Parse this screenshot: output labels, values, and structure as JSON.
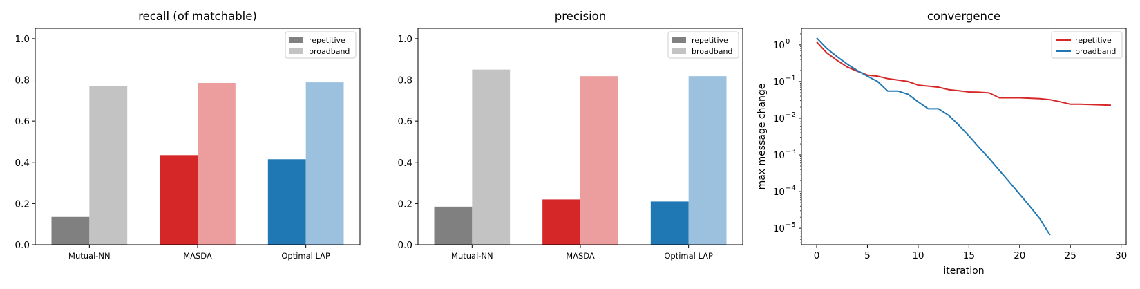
{
  "charts": [
    {
      "type": "bar",
      "title": "recall (of matchable)",
      "categories": [
        "Mutual-NN",
        "MASDA",
        "Optimal LAP"
      ],
      "ylim": [
        0,
        1.05
      ],
      "yticks": [
        "0.0",
        "0.2",
        "0.4",
        "0.6",
        "0.8",
        "1.0"
      ],
      "legend": {
        "placement": "top-right",
        "entries": [
          "repetitive",
          "broadband"
        ],
        "colors": [
          "#808080",
          "#c3c3c3"
        ]
      },
      "series": [
        {
          "name": "repetitive",
          "values": [
            0.135,
            0.435,
            0.415
          ],
          "colors": [
            "#808080",
            "#d62728",
            "#1f77b4"
          ]
        },
        {
          "name": "broadband",
          "values": [
            0.77,
            0.785,
            0.788
          ],
          "colors": [
            "#c3c3c3",
            "#ec9e9e",
            "#9bc1df"
          ]
        }
      ]
    },
    {
      "type": "bar",
      "title": "precision",
      "categories": [
        "Mutual-NN",
        "MASDA",
        "Optimal LAP"
      ],
      "ylim": [
        0,
        1.05
      ],
      "yticks": [
        "0.0",
        "0.2",
        "0.4",
        "0.6",
        "0.8",
        "1.0"
      ],
      "legend": {
        "placement": "top-right",
        "entries": [
          "repetitive",
          "broadband"
        ],
        "colors": [
          "#808080",
          "#c3c3c3"
        ]
      },
      "series": [
        {
          "name": "repetitive",
          "values": [
            0.185,
            0.22,
            0.21
          ],
          "colors": [
            "#808080",
            "#d62728",
            "#1f77b4"
          ]
        },
        {
          "name": "broadband",
          "values": [
            0.85,
            0.818,
            0.818
          ],
          "colors": [
            "#c3c3c3",
            "#ec9e9e",
            "#9bc1df"
          ]
        }
      ]
    },
    {
      "type": "line",
      "title": "convergence",
      "xlabel": "iteration",
      "ylabel": "max message change",
      "yscale": "log",
      "xlim": [
        -1.5,
        30.5
      ],
      "ylim_log10": [
        -5.45,
        0.45
      ],
      "xticks": [
        "0",
        "5",
        "10",
        "15",
        "20",
        "25",
        "30"
      ],
      "yticks": [
        {
          "base": "10",
          "exp": "0"
        },
        {
          "base": "10",
          "exp": "−1"
        },
        {
          "base": "10",
          "exp": "−2"
        },
        {
          "base": "10",
          "exp": "−3"
        },
        {
          "base": "10",
          "exp": "−4"
        },
        {
          "base": "10",
          "exp": "−5"
        }
      ],
      "legend": {
        "placement": "top-right",
        "entries": [
          "repetitive",
          "broadband"
        ],
        "colors": [
          "#d62728",
          "#1f77b4"
        ]
      },
      "series": [
        {
          "name": "repetitive",
          "color": "#d62728",
          "x": [
            0,
            1,
            2,
            3,
            4,
            5,
            6,
            7,
            8,
            9,
            10,
            11,
            12,
            13,
            14,
            15,
            16,
            17,
            18,
            19,
            20,
            21,
            22,
            23,
            24,
            25,
            26,
            27,
            28,
            29
          ],
          "y": [
            1.2,
            0.6,
            0.38,
            0.25,
            0.19,
            0.15,
            0.14,
            0.12,
            0.11,
            0.1,
            0.08,
            0.075,
            0.07,
            0.06,
            0.056,
            0.052,
            0.051,
            0.049,
            0.036,
            0.036,
            0.036,
            0.035,
            0.034,
            0.032,
            0.028,
            0.024,
            0.024,
            0.0235,
            0.023,
            0.0225
          ]
        },
        {
          "name": "broadband",
          "color": "#1f77b4",
          "x": [
            0,
            1,
            2,
            3,
            4,
            5,
            6,
            7,
            8,
            9,
            10,
            11,
            12,
            13,
            14,
            15,
            16,
            17,
            18,
            19,
            20,
            21,
            22,
            23
          ],
          "y": [
            1.55,
            0.8,
            0.48,
            0.3,
            0.2,
            0.14,
            0.1,
            0.055,
            0.055,
            0.045,
            0.028,
            0.018,
            0.018,
            0.012,
            0.0065,
            0.0033,
            0.0016,
            0.0008,
            0.00038,
            0.00018,
            8.5e-05,
            4e-05,
            1.8e-05,
            6.5e-06
          ]
        }
      ]
    }
  ]
}
